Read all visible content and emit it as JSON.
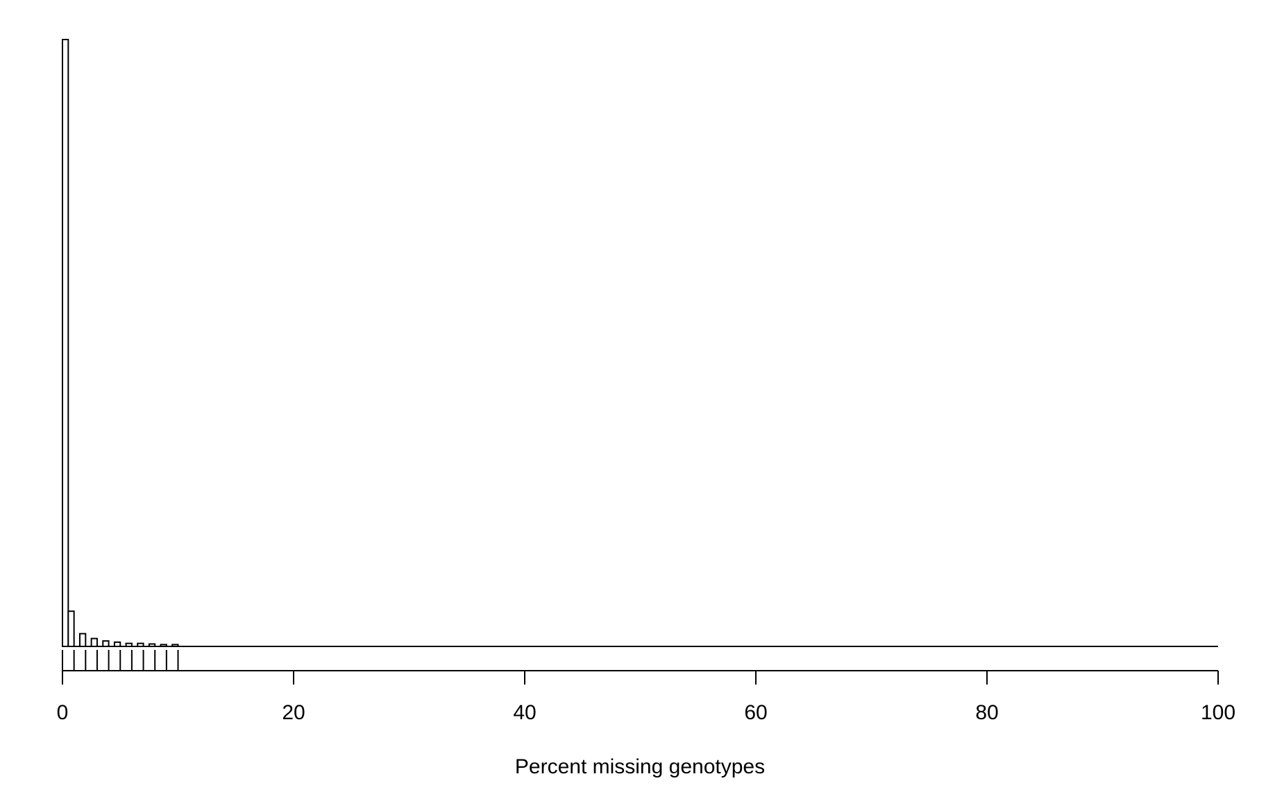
{
  "chart_data": {
    "type": "bar",
    "title": "",
    "xlabel": "Percent missing genotypes",
    "ylabel": "",
    "xlim": [
      0,
      100
    ],
    "xticks": [
      0,
      20,
      40,
      60,
      80,
      100
    ],
    "xtick_labels": [
      "0",
      "20",
      "40",
      "60",
      "80",
      "100"
    ],
    "bin_width": 0.5,
    "bins": [
      {
        "x0": 0.0,
        "x1": 0.5,
        "value": 1000
      },
      {
        "x0": 0.5,
        "x1": 1.0,
        "value": 58
      },
      {
        "x0": 1.0,
        "x1": 1.5,
        "value": 0
      },
      {
        "x0": 1.5,
        "x1": 2.0,
        "value": 21
      },
      {
        "x0": 2.0,
        "x1": 2.5,
        "value": 0
      },
      {
        "x0": 2.5,
        "x1": 3.0,
        "value": 13
      },
      {
        "x0": 3.0,
        "x1": 3.5,
        "value": 0
      },
      {
        "x0": 3.5,
        "x1": 4.0,
        "value": 9
      },
      {
        "x0": 4.0,
        "x1": 4.5,
        "value": 0
      },
      {
        "x0": 4.5,
        "x1": 5.0,
        "value": 7
      },
      {
        "x0": 5.0,
        "x1": 5.5,
        "value": 0
      },
      {
        "x0": 5.5,
        "x1": 6.0,
        "value": 5
      },
      {
        "x0": 6.0,
        "x1": 6.5,
        "value": 0
      },
      {
        "x0": 6.5,
        "x1": 7.0,
        "value": 5
      },
      {
        "x0": 7.0,
        "x1": 7.5,
        "value": 0
      },
      {
        "x0": 7.5,
        "x1": 8.0,
        "value": 4
      },
      {
        "x0": 8.0,
        "x1": 8.5,
        "value": 0
      },
      {
        "x0": 8.5,
        "x1": 9.0,
        "value": 3
      },
      {
        "x0": 9.0,
        "x1": 9.5,
        "value": 0
      },
      {
        "x0": 9.5,
        "x1": 10.0,
        "value": 3
      }
    ],
    "ylim": [
      0,
      1000
    ],
    "rug": [
      0,
      1,
      2,
      3,
      4,
      5,
      6,
      7,
      8,
      9,
      10
    ],
    "grid": false,
    "legend": "none"
  }
}
